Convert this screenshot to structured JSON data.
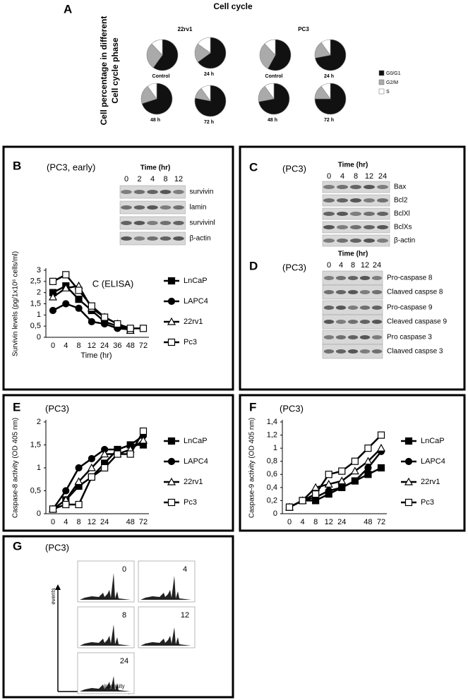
{
  "chart_data": [
    {
      "type": "pie",
      "title": "Control",
      "values": [
        60,
        28,
        12
      ]
    },
    {
      "type": "pie",
      "title": "24 h",
      "values": [
        65,
        20,
        15
      ]
    },
    {
      "type": "pie",
      "title": "48 h",
      "values": [
        70,
        20,
        10
      ]
    },
    {
      "type": "pie",
      "title": "72 h",
      "values": [
        78,
        12,
        10
      ]
    },
    {
      "type": "pie",
      "title": "Control",
      "values": [
        58,
        30,
        12
      ]
    },
    {
      "type": "pie",
      "title": "24 h",
      "values": [
        72,
        18,
        10
      ]
    },
    {
      "type": "pie",
      "title": "48 h",
      "values": [
        72,
        18,
        10
      ]
    },
    {
      "type": "pie",
      "title": "72 h",
      "values": [
        75,
        15,
        10
      ]
    },
    {
      "type": "line",
      "annotation": "C (ELISA)",
      "y_label": "Survivin levels (pg/1x10⁶ cells/ml)",
      "x_label": "Time (hr)",
      "categories": [
        "0",
        "4",
        "8",
        "12",
        "24",
        "36",
        "48",
        "72"
      ],
      "ylim": [
        0,
        3
      ],
      "yticks": [
        0,
        {
          "value": 0.5,
          "label": "0,5"
        },
        1,
        {
          "value": 1.5,
          "label": "1,5"
        },
        2,
        {
          "value": 2.5,
          "label": "2,5"
        },
        3
      ],
      "series": [
        {
          "name": "LnCaP",
          "color": "#000000",
          "fill": "#000000",
          "marker": "square",
          "values": [
            2.0,
            2.3,
            1.7,
            1.2,
            0.7,
            0.5,
            0.35,
            null
          ]
        },
        {
          "name": "LAPC4",
          "color": "#000000",
          "fill": "#000000",
          "marker": "circle",
          "values": [
            1.2,
            1.5,
            1.3,
            0.7,
            0.6,
            0.4,
            0.35,
            null
          ]
        },
        {
          "name": "22rv1",
          "color": "#000000",
          "fill": "#ffffff",
          "marker": "triangle",
          "values": [
            1.8,
            2.2,
            2.3,
            1.3,
            0.9,
            0.6,
            0.3,
            null
          ]
        },
        {
          "name": "Pc3",
          "color": "#000000",
          "fill": "#ffffff",
          "marker": "square",
          "values": [
            2.5,
            2.8,
            2.1,
            1.4,
            0.9,
            0.6,
            0.4,
            0.4
          ]
        }
      ]
    },
    {
      "type": "line",
      "y_label": "Caspase-8 activity (OD 405 nm)",
      "categories": [
        "0",
        "4",
        "8",
        "12",
        "24",
        null,
        "48",
        "72"
      ],
      "ylim": [
        0,
        2
      ],
      "yticks": [
        0,
        {
          "value": 0.5,
          "label": "0,5"
        },
        1,
        {
          "value": 1.5,
          "label": "1,5"
        },
        2
      ],
      "series": [
        {
          "name": "LnCaP",
          "color": "#000000",
          "fill": "#000000",
          "marker": "square",
          "values": [
            0.1,
            0.3,
            0.6,
            0.8,
            1.1,
            1.4,
            1.5,
            1.5
          ]
        },
        {
          "name": "LAPC4",
          "color": "#000000",
          "fill": "#000000",
          "marker": "circle",
          "values": [
            0.1,
            0.5,
            1.0,
            1.2,
            1.4,
            1.4,
            1.5,
            1.7
          ]
        },
        {
          "name": "22rv1",
          "color": "#000000",
          "fill": "#ffffff",
          "marker": "triangle",
          "values": [
            0.1,
            0.3,
            0.7,
            1.0,
            1.3,
            1.3,
            1.4,
            1.6
          ]
        },
        {
          "name": "Pc3",
          "color": "#000000",
          "fill": "#ffffff",
          "marker": "square",
          "values": [
            0.1,
            0.2,
            0.2,
            0.8,
            1.0,
            1.3,
            1.3,
            1.8
          ]
        }
      ]
    },
    {
      "type": "line",
      "y_label": "Caspase-9 activity (OD 405 nm)",
      "categories": [
        "0",
        "4",
        "8",
        "12",
        "24",
        null,
        "48",
        "72"
      ],
      "ylim": [
        0,
        1.4
      ],
      "yticks": [
        0,
        {
          "value": 0.2,
          "label": "0,2"
        },
        {
          "value": 0.4,
          "label": "0,4"
        },
        {
          "value": 0.6,
          "label": "0,6"
        },
        {
          "value": 0.8,
          "label": "0,8"
        },
        1,
        {
          "value": 1.2,
          "label": "1,2"
        },
        {
          "value": 1.4,
          "label": "1,4"
        }
      ],
      "series": [
        {
          "name": "LnCaP",
          "color": "#000000",
          "fill": "#000000",
          "marker": "square",
          "values": [
            0.1,
            0.2,
            0.2,
            0.3,
            0.4,
            0.5,
            0.6,
            0.7
          ]
        },
        {
          "name": "LAPC4",
          "color": "#000000",
          "fill": "#000000",
          "marker": "circle",
          "values": [
            0.1,
            0.2,
            0.25,
            0.35,
            0.4,
            0.5,
            0.7,
            0.95
          ]
        },
        {
          "name": "22rv1",
          "color": "#000000",
          "fill": "#ffffff",
          "marker": "triangle",
          "values": [
            0.1,
            0.2,
            0.4,
            0.45,
            0.5,
            0.65,
            0.8,
            1.0
          ]
        },
        {
          "name": "Pc3",
          "color": "#000000",
          "fill": "#ffffff",
          "marker": "square",
          "values": [
            0.1,
            0.2,
            0.3,
            0.6,
            0.65,
            0.8,
            1.0,
            1.2
          ]
        }
      ]
    }
  ],
  "figure": {
    "panel_a": {
      "letter": "A",
      "title": "Cell cycle",
      "y_label_lines": [
        "Cell percentage in different",
        "Cell cycle phase"
      ],
      "groups": [
        "22rv1",
        "PC3"
      ],
      "legend": {
        "names": [
          "G0/G1",
          "G2/M",
          "S"
        ],
        "colors": [
          "#111111",
          "#aaaaaa",
          "#ffffff"
        ]
      }
    },
    "panel_b": {
      "letter": "B",
      "subtitle": "(PC3, early)",
      "blot": {
        "time_label": "Time (hr)",
        "lanes": [
          "0",
          "2",
          "4",
          "8",
          "12"
        ],
        "rows": [
          "survivin",
          "lamin",
          "survivinl",
          "β-actin"
        ]
      }
    },
    "panel_c": {
      "letter": "C",
      "subtitle": "(PC3)",
      "blot": {
        "time_label": "Time (hr)",
        "lanes": [
          "0",
          "4",
          "8",
          "12",
          "24"
        ],
        "rows": [
          "Bax",
          "Bcl2",
          "BclXl",
          "BclXs",
          "β-actin"
        ]
      }
    },
    "panel_d": {
      "letter": "D",
      "subtitle": "(PC3)",
      "blot": {
        "time_label": "Time (hr)",
        "lanes": [
          "0",
          "4",
          "8",
          "12",
          "24"
        ],
        "rows": [
          "Pro-caspase 8",
          "Claaved caspse 8",
          "Pro-caspase 9",
          "Cleaved caspase 9",
          "Pro caspase 3",
          "Claaved caspse 3"
        ]
      }
    },
    "panel_e": {
      "letter": "E",
      "subtitle": "(PC3)"
    },
    "panel_f": {
      "letter": "F",
      "subtitle": "(PC3)"
    },
    "panel_g": {
      "letter": "G",
      "subtitle": "(PC3)",
      "times": [
        "0",
        "4",
        "8",
        "12",
        "24"
      ],
      "y_label": "events",
      "x_label": "intensity"
    }
  }
}
